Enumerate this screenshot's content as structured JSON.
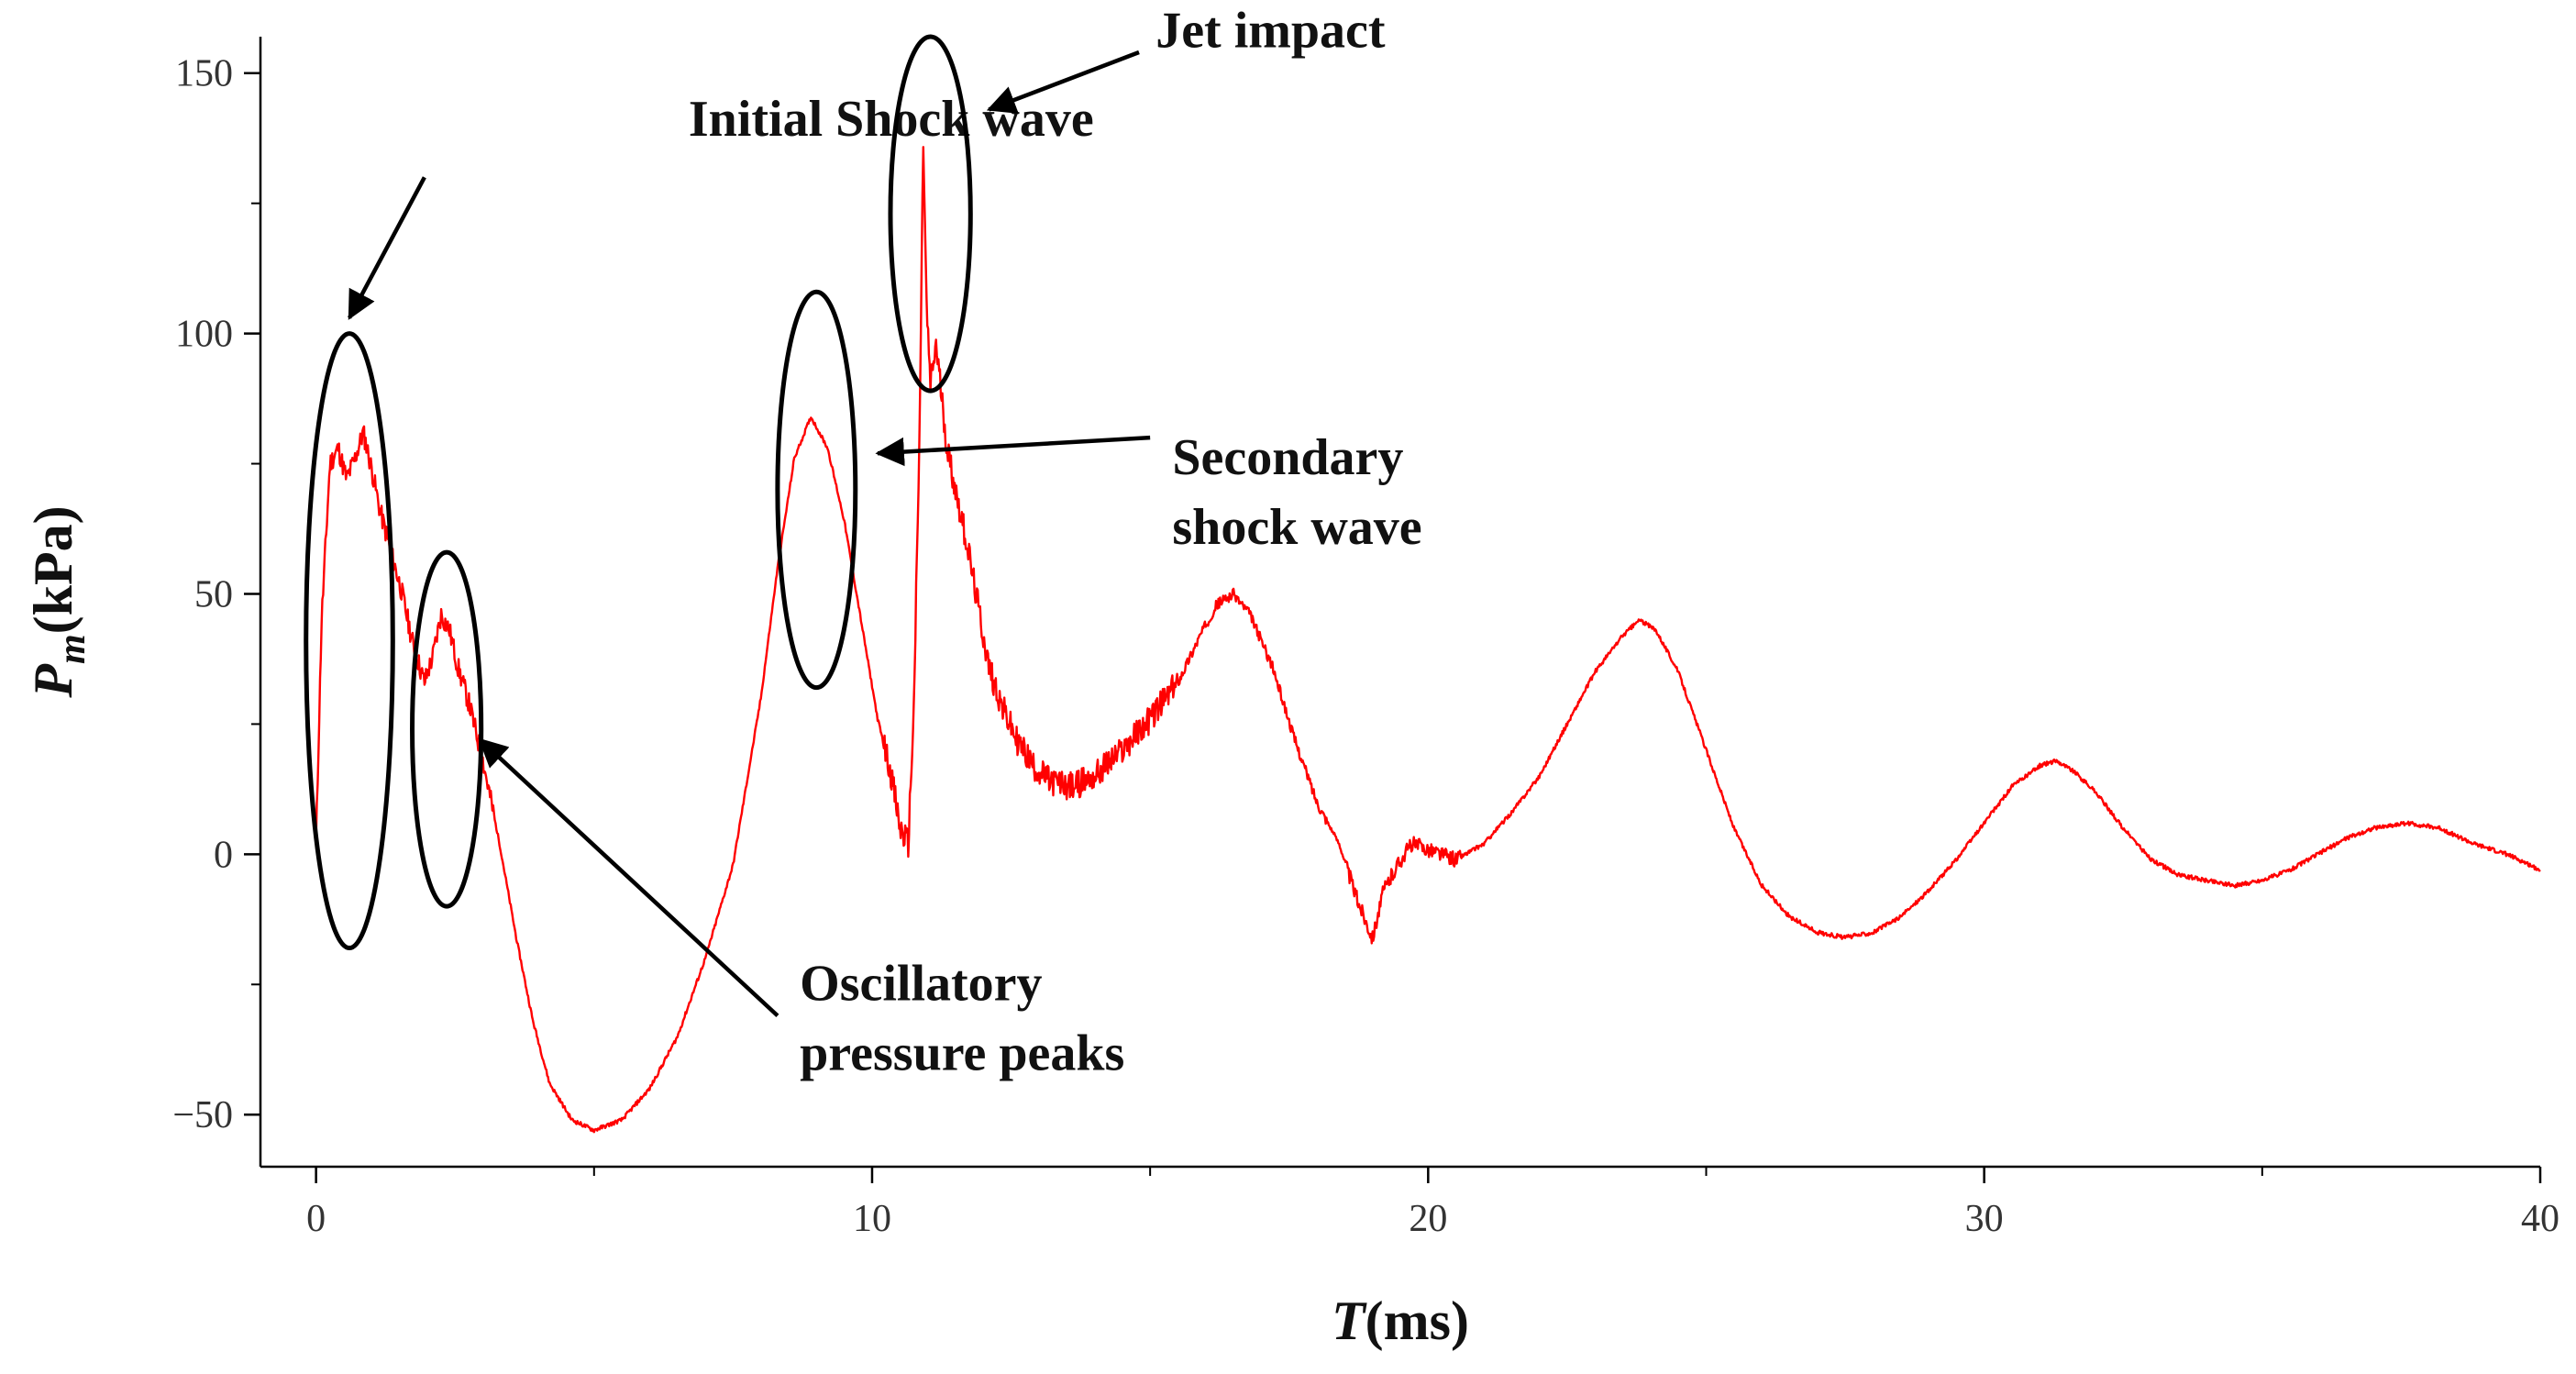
{
  "chart_data": {
    "type": "line",
    "title": "",
    "xlabel": {
      "italic": "T",
      "rest": "(ms)"
    },
    "ylabel": {
      "main": "P",
      "sub": "m",
      "rest": "(kPa)"
    },
    "xlim": [
      -1,
      40
    ],
    "ylim": [
      -60,
      157
    ],
    "x_ticks": [
      0,
      10,
      20,
      30,
      40
    ],
    "x_tick_labels": [
      "0",
      "10",
      "20",
      "30",
      "40"
    ],
    "y_ticks": [
      -50,
      0,
      50,
      100,
      150
    ],
    "y_tick_labels": [
      "−50",
      "0",
      "50",
      "100",
      "150"
    ],
    "grid": false,
    "series": [
      {
        "name": "Pm",
        "color": "#ff0000",
        "points": [
          [
            0.0,
            2
          ],
          [
            0.1,
            45
          ],
          [
            0.25,
            75
          ],
          [
            0.4,
            78
          ],
          [
            0.55,
            72
          ],
          [
            0.7,
            76
          ],
          [
            0.85,
            81
          ],
          [
            1.0,
            74
          ],
          [
            1.15,
            66
          ],
          [
            1.35,
            58
          ],
          [
            1.55,
            50
          ],
          [
            1.75,
            40
          ],
          [
            1.95,
            33
          ],
          [
            2.1,
            38
          ],
          [
            2.25,
            46
          ],
          [
            2.4,
            43
          ],
          [
            2.55,
            36
          ],
          [
            2.75,
            29
          ],
          [
            3.0,
            18
          ],
          [
            3.3,
            2
          ],
          [
            3.6,
            -16
          ],
          [
            3.9,
            -32
          ],
          [
            4.2,
            -44
          ],
          [
            4.6,
            -51
          ],
          [
            5.0,
            -53
          ],
          [
            5.5,
            -51
          ],
          [
            6.0,
            -45
          ],
          [
            6.5,
            -35
          ],
          [
            7.0,
            -20
          ],
          [
            7.5,
            -2
          ],
          [
            8.0,
            30
          ],
          [
            8.3,
            55
          ],
          [
            8.6,
            76
          ],
          [
            8.9,
            84
          ],
          [
            9.2,
            78
          ],
          [
            9.5,
            64
          ],
          [
            9.8,
            45
          ],
          [
            10.1,
            26
          ],
          [
            10.35,
            15
          ],
          [
            10.5,
            5
          ],
          [
            10.65,
            2
          ],
          [
            10.75,
            28
          ],
          [
            10.85,
            78
          ],
          [
            10.92,
            137
          ],
          [
            10.98,
            105
          ],
          [
            11.05,
            90
          ],
          [
            11.15,
            98
          ],
          [
            11.25,
            88
          ],
          [
            11.35,
            78
          ],
          [
            11.5,
            70
          ],
          [
            11.7,
            60
          ],
          [
            11.9,
            48
          ],
          [
            12.1,
            36
          ],
          [
            12.35,
            28
          ],
          [
            12.6,
            22
          ],
          [
            12.9,
            17
          ],
          [
            13.2,
            14
          ],
          [
            13.6,
            13
          ],
          [
            14.0,
            15
          ],
          [
            14.5,
            20
          ],
          [
            15.0,
            26
          ],
          [
            15.5,
            33
          ],
          [
            15.9,
            42
          ],
          [
            16.2,
            48
          ],
          [
            16.5,
            50
          ],
          [
            16.8,
            46
          ],
          [
            17.2,
            36
          ],
          [
            17.6,
            22
          ],
          [
            18.0,
            10
          ],
          [
            18.4,
            2
          ],
          [
            18.7,
            -8
          ],
          [
            19.0,
            -16
          ],
          [
            19.2,
            -7
          ],
          [
            19.45,
            -2
          ],
          [
            19.7,
            2
          ],
          [
            20.0,
            1
          ],
          [
            20.5,
            -1
          ],
          [
            21.0,
            2
          ],
          [
            21.5,
            8
          ],
          [
            22.0,
            15
          ],
          [
            22.5,
            25
          ],
          [
            23.0,
            35
          ],
          [
            23.5,
            42
          ],
          [
            23.8,
            45
          ],
          [
            24.1,
            43
          ],
          [
            24.5,
            35
          ],
          [
            25.0,
            20
          ],
          [
            25.5,
            5
          ],
          [
            26.0,
            -6
          ],
          [
            26.5,
            -12
          ],
          [
            27.0,
            -15
          ],
          [
            27.5,
            -16
          ],
          [
            28.0,
            -15
          ],
          [
            28.5,
            -12
          ],
          [
            29.0,
            -7
          ],
          [
            29.5,
            -1
          ],
          [
            30.0,
            6
          ],
          [
            30.5,
            13
          ],
          [
            31.0,
            17
          ],
          [
            31.3,
            18
          ],
          [
            31.6,
            16
          ],
          [
            32.0,
            12
          ],
          [
            32.5,
            5
          ],
          [
            33.0,
            -1
          ],
          [
            33.5,
            -4
          ],
          [
            34.0,
            -5
          ],
          [
            34.5,
            -6
          ],
          [
            35.0,
            -5
          ],
          [
            35.5,
            -3
          ],
          [
            36.0,
            0
          ],
          [
            36.5,
            3
          ],
          [
            37.0,
            5
          ],
          [
            37.6,
            6
          ],
          [
            38.2,
            5
          ],
          [
            38.8,
            2
          ],
          [
            39.4,
            0
          ],
          [
            40.0,
            -3
          ]
        ]
      }
    ],
    "annotations": [
      {
        "lines": [
          "Initial Shock wave"
        ],
        "label_at": [
          6.7,
          138
        ],
        "arrow_from": [
          1.95,
          130
        ],
        "arrow_to": [
          0.6,
          103
        ],
        "ellipse": {
          "center": [
            0.6,
            41
          ],
          "rx": 0.78,
          "ry": 59
        }
      },
      {
        "lines": [
          "Oscillatory",
          "pressure peaks"
        ],
        "label_at": [
          8.7,
          -28
        ],
        "arrow_from": [
          8.3,
          -31
        ],
        "arrow_to": [
          2.95,
          22
        ],
        "ellipse": {
          "center": [
            2.35,
            24
          ],
          "rx": 0.62,
          "ry": 34
        }
      },
      {
        "lines": [
          "Secondary",
          "shock wave"
        ],
        "label_at": [
          15.4,
          73
        ],
        "arrow_from": [
          15.0,
          80
        ],
        "arrow_to": [
          10.1,
          77
        ],
        "ellipse": {
          "center": [
            9.0,
            70
          ],
          "rx": 0.7,
          "ry": 38
        }
      },
      {
        "lines": [
          "Jet impact"
        ],
        "label_at": [
          15.1,
          155
        ],
        "arrow_from": [
          14.8,
          154
        ],
        "arrow_to": [
          12.1,
          143
        ],
        "ellipse": {
          "center": [
            11.05,
            123
          ],
          "rx": 0.72,
          "ry": 34
        }
      }
    ]
  }
}
